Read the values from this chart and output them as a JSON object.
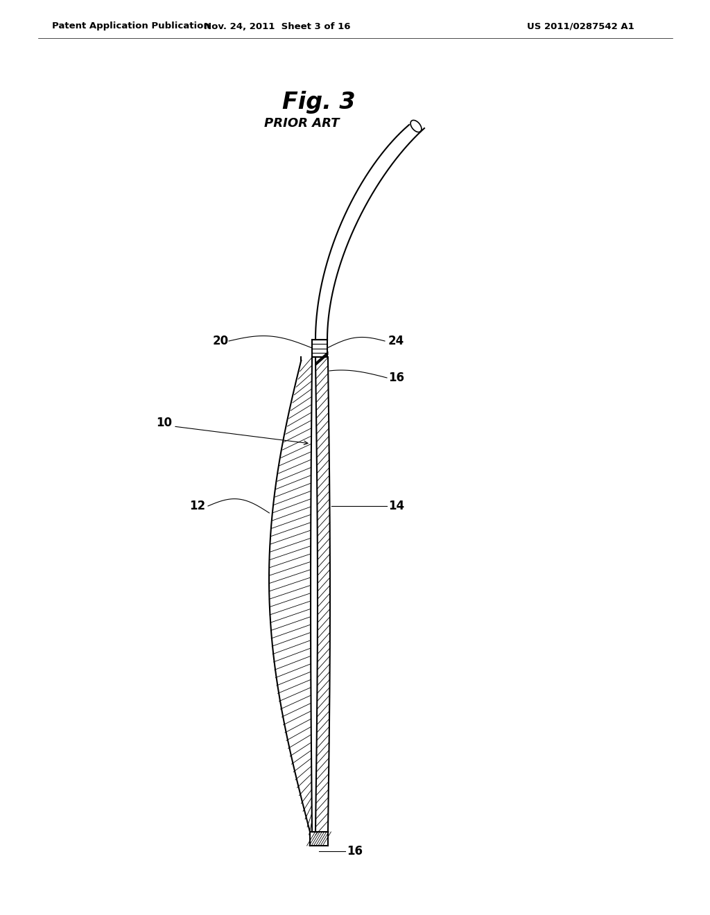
{
  "bg_color": "#ffffff",
  "header_left": "Patent Application Publication",
  "header_mid": "Nov. 24, 2011  Sheet 3 of 16",
  "header_right": "US 2011/0287542 A1",
  "fig_title": "Fig. 3",
  "fig_subtitle": "PRIOR ART"
}
